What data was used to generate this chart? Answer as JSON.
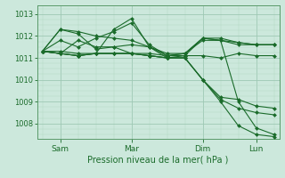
{
  "background_color": "#cce8dc",
  "grid_color_major": "#9ec8b4",
  "grid_color_minor": "#b4d8c4",
  "line_color": "#1a6b2a",
  "xlabel": "Pression niveau de la mer( hPa )",
  "ylim": [
    1007.3,
    1013.4
  ],
  "yticks": [
    1008,
    1009,
    1010,
    1011,
    1012,
    1013
  ],
  "xtick_labels": [
    "Sam",
    "Mar",
    "Dim",
    "Lun"
  ],
  "xtick_positions": [
    1,
    5,
    9,
    12
  ],
  "n_points": 14,
  "xlim": [
    -0.3,
    13.3
  ],
  "series": [
    [
      1011.3,
      1011.2,
      1011.8,
      1011.5,
      1011.5,
      1011.2,
      1011.2,
      1011.1,
      1011.1,
      1011.1,
      1011.0,
      1011.2,
      1011.1,
      1011.1
    ],
    [
      1011.3,
      1012.3,
      1012.1,
      1011.4,
      1011.5,
      1011.6,
      1011.5,
      1011.1,
      1011.2,
      1011.9,
      1011.9,
      1011.7,
      1011.6,
      1011.6
    ],
    [
      1011.3,
      1012.3,
      1012.2,
      1012.0,
      1011.9,
      1011.8,
      1011.5,
      1011.2,
      1011.2,
      1011.9,
      1011.8,
      1011.6,
      1011.6,
      1011.6
    ],
    [
      1011.3,
      1011.8,
      1011.5,
      1011.9,
      1012.2,
      1012.6,
      1011.6,
      1011.1,
      1011.2,
      1011.8,
      1011.8,
      1011.7,
      1011.6,
      1011.6
    ],
    [
      1011.3,
      1011.3,
      1011.2,
      1011.2,
      1012.3,
      1012.8,
      1011.5,
      1011.0,
      1011.1,
      1011.9,
      1011.8,
      1009.0,
      1007.8,
      1007.5
    ],
    [
      1011.3,
      1011.2,
      1011.1,
      1011.2,
      1011.2,
      1011.2,
      1011.1,
      1011.0,
      1011.0,
      1010.0,
      1009.1,
      1008.7,
      1008.5,
      1008.4
    ],
    [
      1011.3,
      1011.2,
      1011.1,
      1011.2,
      1011.2,
      1011.2,
      1011.1,
      1011.0,
      1011.0,
      1010.0,
      1009.2,
      1009.1,
      1008.8,
      1008.7
    ],
    [
      1011.3,
      1011.2,
      1011.1,
      1011.2,
      1011.2,
      1011.2,
      1011.1,
      1011.0,
      1011.0,
      1010.0,
      1009.0,
      1007.9,
      1007.5,
      1007.4
    ]
  ]
}
